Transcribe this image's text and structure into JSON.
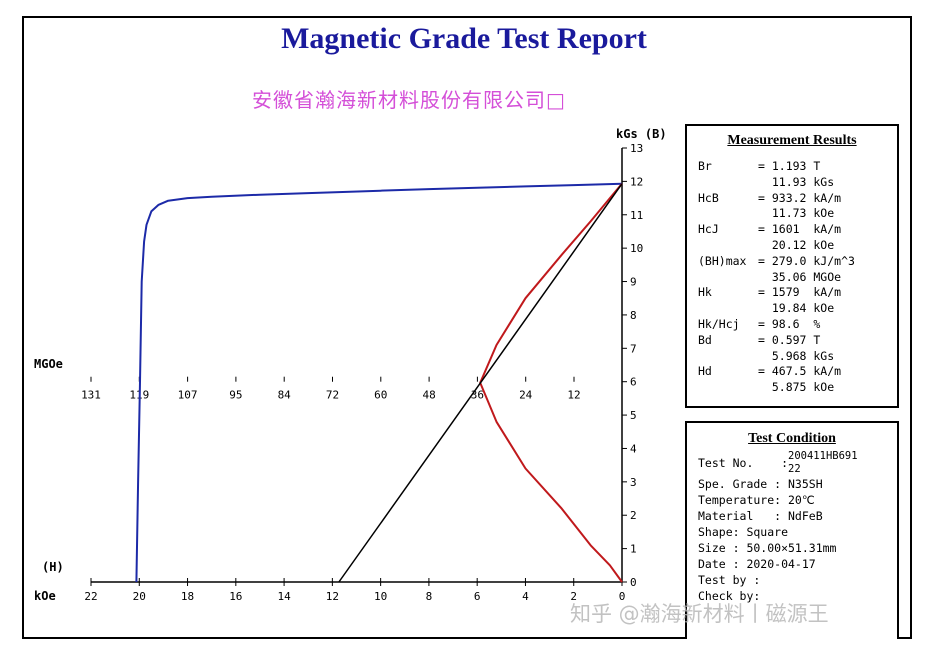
{
  "report": {
    "title": "Magnetic Grade Test Report",
    "company": "安徽省瀚海新材料股份有限公司□"
  },
  "chart_data": {
    "type": "line",
    "title": "Magnetic Grade Test Report",
    "x_axis": {
      "unit_label": "kOe",
      "end_label": "(H)",
      "range": [
        22,
        0
      ],
      "ticks": [
        22,
        20,
        18,
        16,
        14,
        12,
        10,
        8,
        6,
        4,
        2,
        0
      ],
      "reversed": true
    },
    "y_axis": {
      "unit_label": "kGs (B)",
      "range": [
        0,
        13
      ],
      "ticks": [
        0,
        1,
        2,
        3,
        4,
        5,
        6,
        7,
        8,
        9,
        10,
        11,
        12,
        13
      ],
      "position": "right"
    },
    "energy_axis": {
      "unit_label": "MGOe",
      "ticks": [
        "131",
        "119",
        "107",
        "95",
        "84",
        "72",
        "60",
        "48",
        "36",
        "24",
        "12"
      ],
      "at_y": 6
    },
    "series": [
      {
        "kind": "demagnetization-curve",
        "color": "#1c2aa8",
        "points": [
          [
            0,
            11.93
          ],
          [
            2,
            11.89
          ],
          [
            4,
            11.85
          ],
          [
            6,
            11.81
          ],
          [
            8,
            11.77
          ],
          [
            10,
            11.72
          ],
          [
            11.73,
            11.68
          ],
          [
            13,
            11.65
          ],
          [
            15,
            11.6
          ],
          [
            17,
            11.54
          ],
          [
            18,
            11.5
          ],
          [
            18.8,
            11.42
          ],
          [
            19.2,
            11.3
          ],
          [
            19.5,
            11.1
          ],
          [
            19.7,
            10.7
          ],
          [
            19.8,
            10.2
          ],
          [
            19.9,
            9
          ],
          [
            19.97,
            6
          ],
          [
            20.05,
            3
          ],
          [
            20.12,
            0
          ]
        ]
      },
      {
        "kind": "energy-product-curve",
        "color": "#c0191c",
        "points": [
          [
            0,
            11.93
          ],
          [
            0.5,
            11.5
          ],
          [
            1.3,
            10.8
          ],
          [
            2.5,
            9.8
          ],
          [
            4,
            8.5
          ],
          [
            5.2,
            7.1
          ],
          [
            5.875,
            5.968
          ],
          [
            5.2,
            4.8
          ],
          [
            4,
            3.4
          ],
          [
            2.5,
            2.2
          ],
          [
            1.3,
            1.1
          ],
          [
            0.5,
            0.5
          ],
          [
            0,
            0
          ]
        ]
      },
      {
        "kind": "load-line",
        "color": "#000000",
        "points": [
          [
            0,
            11.93
          ],
          [
            11.73,
            0
          ]
        ]
      }
    ],
    "grid": false
  },
  "measurement": {
    "title": "Measurement Results",
    "rows": [
      {
        "label": "Br",
        "value": "= 1.193 T"
      },
      {
        "label": "",
        "value": "  11.93 kGs"
      },
      {
        "label": "HcB",
        "value": "= 933.2 kA/m"
      },
      {
        "label": "",
        "value": "  11.73 kOe"
      },
      {
        "label": "HcJ",
        "value": "= 1601  kA/m"
      },
      {
        "label": "",
        "value": "  20.12 kOe"
      },
      {
        "label": "(BH)max",
        "value": "= 279.0 kJ/m^3"
      },
      {
        "label": "",
        "value": "  35.06 MGOe"
      },
      {
        "label": "Hk",
        "value": "= 1579  kA/m"
      },
      {
        "label": "",
        "value": "  19.84 kOe"
      },
      {
        "label": "Hk/Hcj",
        "value": "= 98.6  %"
      },
      {
        "label": "Bd",
        "value": "= 0.597 T"
      },
      {
        "label": "",
        "value": "  5.968 kGs"
      },
      {
        "label": "Hd",
        "value": "= 467.5 kA/m"
      },
      {
        "label": "",
        "value": "  5.875 kOe"
      }
    ]
  },
  "condition": {
    "title": "Test Condition",
    "test_no_label": "Test No.    :",
    "test_no_value_1": "200411HB691",
    "test_no_value_2": "22",
    "rows": [
      "Spe. Grade : N35SH",
      "Temperature: 20℃",
      "Material   : NdFeB",
      "Shape: Square",
      "Size : 50.00×51.31mm",
      "Date : 2020-04-17",
      "Test by :",
      "Check by:"
    ]
  },
  "watermark": "知乎 @瀚海新材料丨磁源王"
}
